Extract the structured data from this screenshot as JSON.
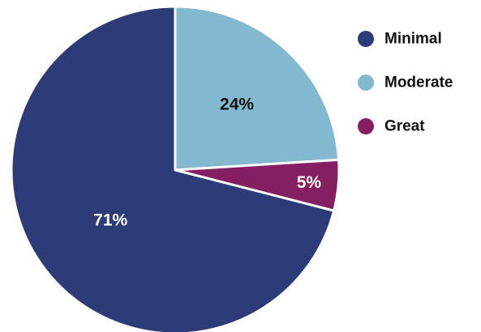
{
  "chart_data": {
    "type": "pie",
    "title": "",
    "legend_position": "right",
    "slices": [
      {
        "label": "Moderate",
        "value": 24,
        "display": "24%",
        "color": "#82b9cf",
        "label_color": "#111111"
      },
      {
        "label": "Great",
        "value": 5,
        "display": "5%",
        "color": "#851f62",
        "label_color": "#ffffff"
      },
      {
        "label": "Minimal",
        "value": 71,
        "display": "71%",
        "color": "#2d3c78",
        "label_color": "#ffffff"
      }
    ],
    "legend": [
      {
        "label": "Minimal",
        "color": "#2d3c78"
      },
      {
        "label": "Moderate",
        "color": "#82b9cf"
      },
      {
        "label": "Great",
        "color": "#851f62"
      }
    ]
  }
}
